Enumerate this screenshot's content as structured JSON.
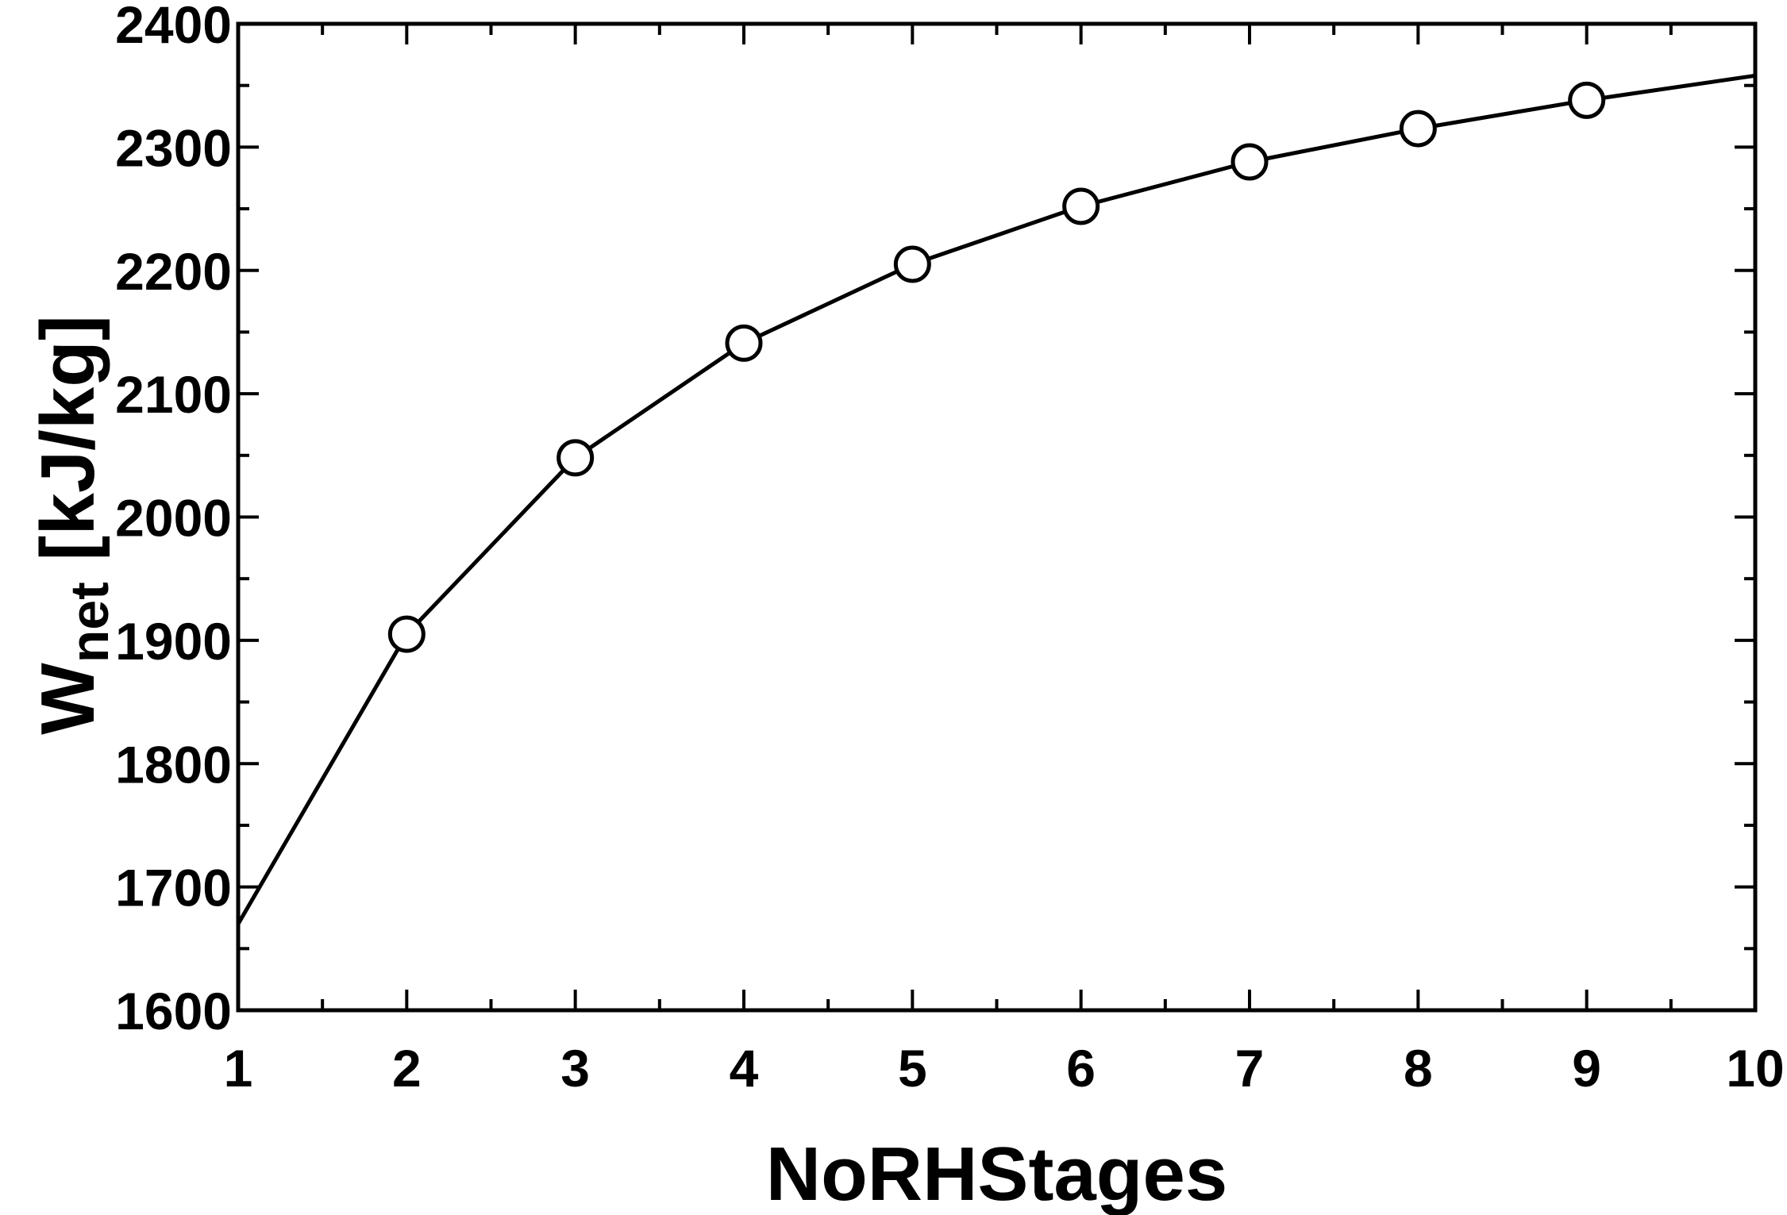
{
  "chart_data": {
    "type": "line",
    "title": "",
    "xlabel": "NoRHStages",
    "ylabel": {
      "main": "W",
      "sub": "net",
      "unit": " [kJ/kg]"
    },
    "xlim": [
      1,
      10
    ],
    "ylim": [
      1600,
      2400
    ],
    "xticks": [
      1,
      2,
      3,
      4,
      5,
      6,
      7,
      8,
      9,
      10
    ],
    "yticks": [
      1600,
      1700,
      1800,
      1900,
      2000,
      2100,
      2200,
      2300,
      2400
    ],
    "x_minor_step": 0.5,
    "y_minor_step": 50,
    "grid": false,
    "line": {
      "x": [
        1,
        2,
        3,
        4,
        5,
        6,
        7,
        8,
        9,
        10
      ],
      "y": [
        1670,
        1905,
        2048,
        2141,
        2205,
        2252,
        2288,
        2315,
        2338,
        2358
      ]
    },
    "markers": {
      "x": [
        2,
        3,
        4,
        5,
        6,
        7,
        8,
        9
      ],
      "y": [
        1905,
        2048,
        2141,
        2205,
        2252,
        2288,
        2315,
        2338
      ],
      "shape": "open-circle"
    },
    "colors": {
      "line": "#000000",
      "marker": "#000000",
      "frame": "#000000"
    }
  }
}
